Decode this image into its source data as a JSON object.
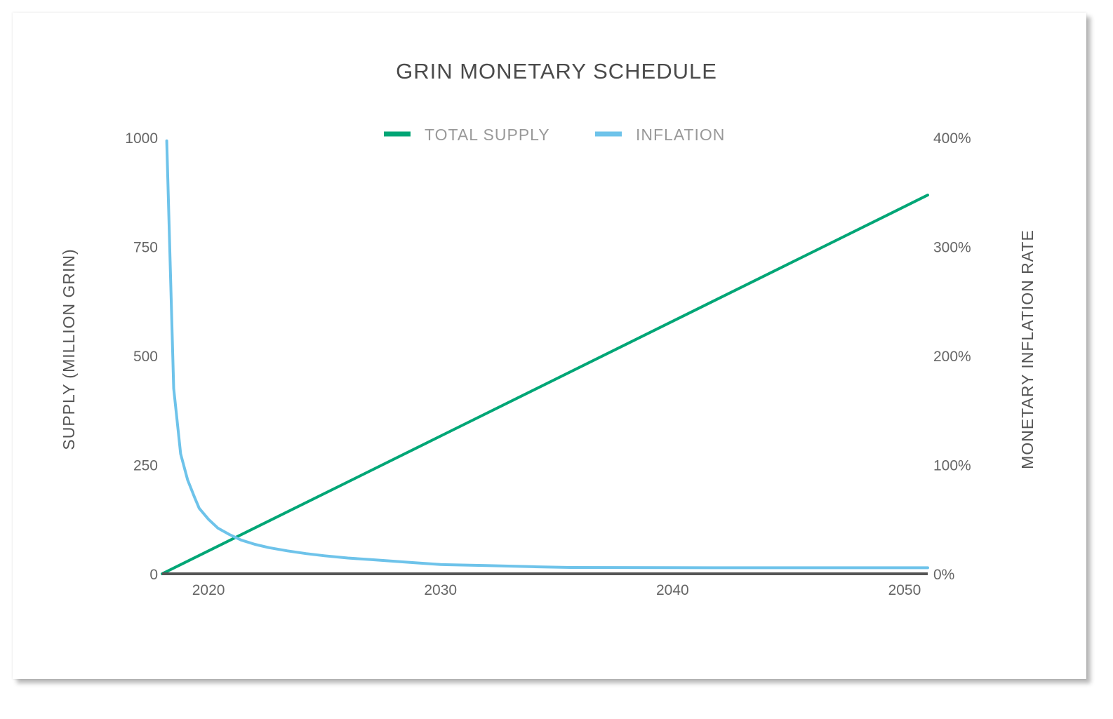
{
  "chart_data": {
    "type": "line",
    "title": "GRIN MONETARY SCHEDULE",
    "ylabel": "SUPPLY (MILLION GRIN)",
    "ylabel_right": "MONETARY INFLATION RATE",
    "xlim": [
      2018,
      2051
    ],
    "ylim": [
      0,
      1000
    ],
    "ylim_right": [
      0,
      400
    ],
    "x_ticks": [
      "2020",
      "2030",
      "2040",
      "2050"
    ],
    "y_ticks": [
      "0",
      "250",
      "500",
      "750",
      "1000"
    ],
    "y_ticks_right": [
      "0%",
      "100%",
      "200%",
      "300%",
      "400%"
    ],
    "legend_position": "top-center",
    "grid": false,
    "series": [
      {
        "name": "TOTAL SUPPLY",
        "axis": "left",
        "color": "#00a676",
        "x": [
          2018,
          2051
        ],
        "y": [
          0,
          868
        ]
      },
      {
        "name": "INFLATION",
        "axis": "right",
        "color": "#6ec3ea",
        "x": [
          2018.2,
          2018.5,
          2018.8,
          2019.1,
          2019.4,
          2019.6,
          2020.0,
          2020.4,
          2020.9,
          2021.4,
          2022.0,
          2022.6,
          2023.4,
          2024.2,
          2025.0,
          2026.0,
          2027.0,
          2028.0,
          2029.0,
          2030.0,
          2032.0,
          2034.0,
          2035.6,
          2040.0,
          2045.0,
          2051.0
        ],
        "y": [
          397,
          170,
          110,
          86,
          70,
          60,
          50,
          42,
          36,
          31,
          27,
          24,
          21,
          18.5,
          16.5,
          14.5,
          13,
          11.5,
          10,
          8.5,
          7.5,
          6.5,
          5.8,
          5.6,
          5.5,
          5.5
        ]
      }
    ]
  }
}
